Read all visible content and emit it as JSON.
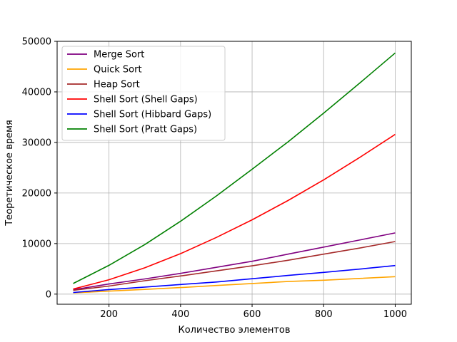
{
  "chart_data": {
    "type": "line",
    "title": "",
    "xlabel": "Количество элементов",
    "ylabel": "Теоретическое время",
    "xlim": [
      55,
      1045
    ],
    "ylim": [
      -2000,
      50000
    ],
    "xticks": [
      200,
      400,
      600,
      800,
      1000
    ],
    "yticks": [
      0,
      10000,
      20000,
      30000,
      40000,
      50000
    ],
    "grid": true,
    "legend_position": "top-left",
    "x": [
      100,
      200,
      300,
      400,
      500,
      600,
      700,
      800,
      900,
      1000
    ],
    "series": [
      {
        "name": "Merge Sort",
        "color": "#800080",
        "values": [
          860,
          2000,
          3000,
          4100,
          5300,
          6500,
          7900,
          9300,
          10700,
          12100
        ]
      },
      {
        "name": "Quick Sort",
        "color": "#ffa500",
        "values": [
          250,
          600,
          930,
          1300,
          1700,
          2100,
          2500,
          2750,
          3100,
          3450
        ]
      },
      {
        "name": "Heap Sort",
        "color": "#a52a2a",
        "values": [
          750,
          1600,
          2650,
          3600,
          4600,
          5600,
          6700,
          7900,
          9100,
          10400
        ]
      },
      {
        "name": "Shell Sort (Shell Gaps)",
        "color": "#ff0000",
        "values": [
          1000,
          2850,
          5200,
          8000,
          11200,
          14700,
          18500,
          22600,
          27000,
          31600
        ]
      },
      {
        "name": "Shell Sort (Hibbard Gaps)",
        "color": "#0000ff",
        "values": [
          320,
          900,
          1400,
          1900,
          2400,
          3050,
          3700,
          4300,
          4950,
          5650
        ]
      },
      {
        "name": "Shell Sort (Pratt Gaps)",
        "color": "#008000",
        "values": [
          2100,
          5700,
          9800,
          14400,
          19400,
          24700,
          30100,
          35800,
          41700,
          47700
        ]
      }
    ]
  }
}
